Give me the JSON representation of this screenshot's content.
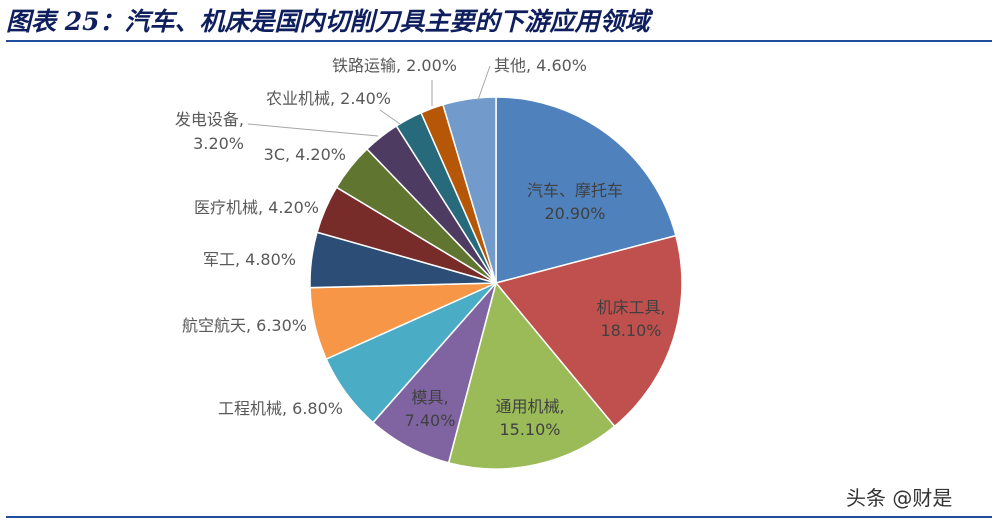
{
  "title": "图表 25：汽车、机床是国内切削刀具主要的下游应用领域",
  "watermark": "头条 @财是",
  "chart_data": {
    "type": "pie",
    "start_angle_deg": 0,
    "direction": "clockwise",
    "legend": "none",
    "slices": [
      {
        "label": "汽车、摩托车",
        "value": 20.9,
        "value_text": "20.90%",
        "color": "#4f81bd",
        "label_position": "inside",
        "lines": [
          "汽车、摩托车",
          "20.90%"
        ]
      },
      {
        "label": "机床工具",
        "value": 18.1,
        "value_text": "18.10%",
        "color": "#c0504d",
        "label_position": "inside",
        "lines": [
          "机床工具,",
          "18.10%"
        ]
      },
      {
        "label": "通用机械",
        "value": 15.1,
        "value_text": "15.10%",
        "color": "#9bbb59",
        "label_position": "inside",
        "lines": [
          "通用机械,",
          "15.10%"
        ]
      },
      {
        "label": "模具",
        "value": 7.4,
        "value_text": "7.40%",
        "color": "#8064a2",
        "label_position": "inside",
        "lines": [
          "模具,",
          "7.40%"
        ]
      },
      {
        "label": "工程机械",
        "value": 6.8,
        "value_text": "6.80%",
        "color": "#4bacc6",
        "label_position": "outside",
        "lines": [
          "工程机械, 6.80%"
        ]
      },
      {
        "label": "航空航天",
        "value": 6.3,
        "value_text": "6.30%",
        "color": "#f79646",
        "label_position": "outside",
        "lines": [
          "航空航天, 6.30%"
        ]
      },
      {
        "label": "军工",
        "value": 4.8,
        "value_text": "4.80%",
        "color": "#2c4d75",
        "label_position": "outside",
        "lines": [
          "军工, 4.80%"
        ]
      },
      {
        "label": "医疗机械",
        "value": 4.2,
        "value_text": "4.20%",
        "color": "#772c2a",
        "label_position": "outside",
        "lines": [
          "医疗机械, 4.20%"
        ]
      },
      {
        "label": "3C",
        "value": 4.2,
        "value_text": "4.20%",
        "color": "#5f7530",
        "label_position": "outside",
        "lines": [
          "3C, 4.20%"
        ]
      },
      {
        "label": "发电设备",
        "value": 3.2,
        "value_text": "3.20%",
        "color": "#4d3b62",
        "label_position": "outside",
        "lines": [
          "发电设备,",
          "3.20%"
        ]
      },
      {
        "label": "农业机械",
        "value": 2.4,
        "value_text": "2.40%",
        "color": "#276a7c",
        "label_position": "outside",
        "lines": [
          "农业机械, 2.40%"
        ]
      },
      {
        "label": "铁路运输",
        "value": 2.0,
        "value_text": "2.00%",
        "color": "#b65708",
        "label_position": "outside",
        "lines": [
          "铁路运输, 2.00%"
        ]
      },
      {
        "label": "其他",
        "value": 4.6,
        "value_text": "4.60%",
        "color": "#729aca",
        "label_position": "outside",
        "lines": [
          "其他, 4.60%"
        ]
      }
    ]
  }
}
